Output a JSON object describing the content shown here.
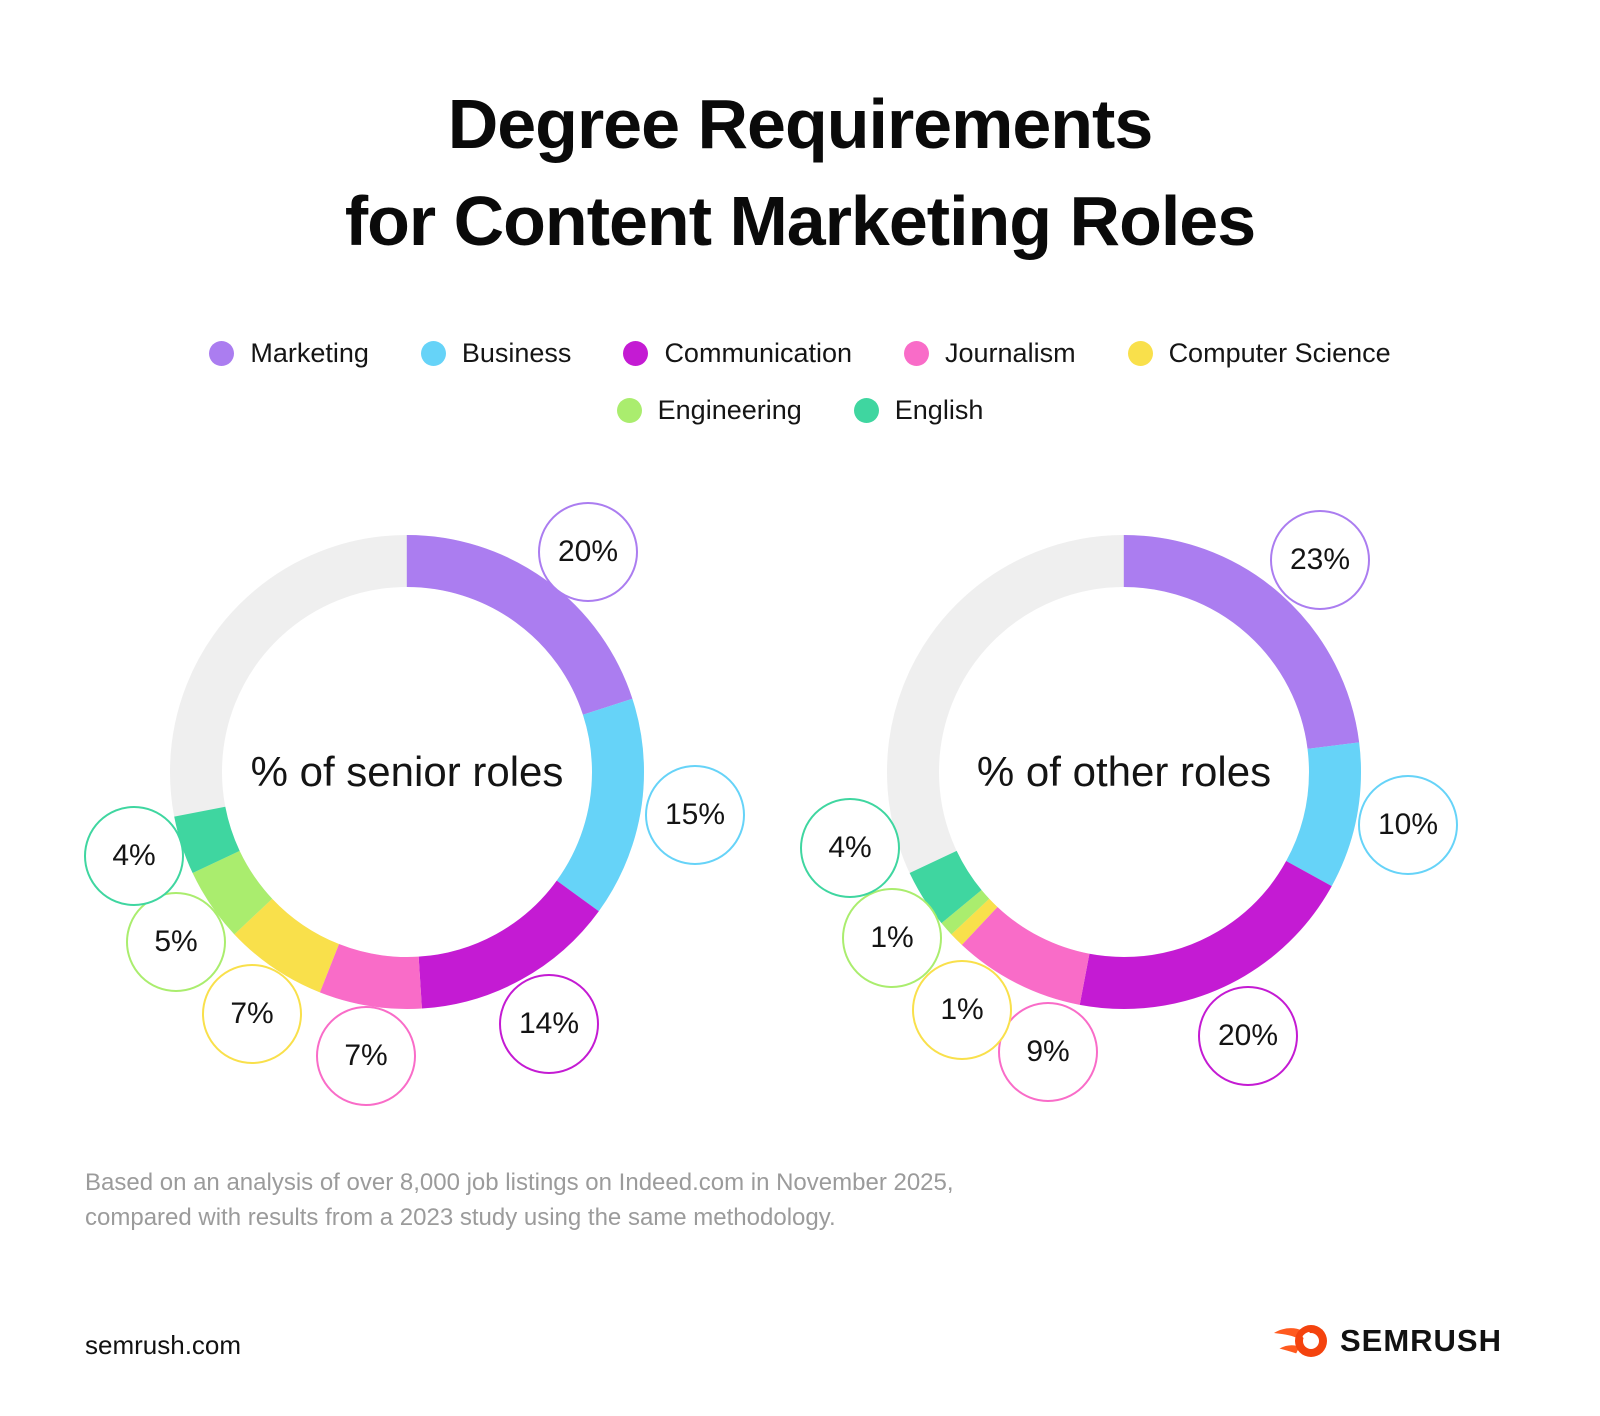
{
  "header": {
    "title_line1": "Degree Requirements",
    "title_line2": "for Content Marketing Roles"
  },
  "legend": [
    {
      "label": "Marketing",
      "color": "#ab7df0"
    },
    {
      "label": "Business",
      "color": "#66d3f8"
    },
    {
      "label": "Communication",
      "color": "#c41bd3"
    },
    {
      "label": "Journalism",
      "color": "#f96cc8"
    },
    {
      "label": "Computer Science",
      "color": "#f9e04b"
    },
    {
      "label": "Engineering",
      "color": "#aaed6e"
    },
    {
      "label": "English",
      "color": "#3fd6a0"
    }
  ],
  "colors": {
    "remainder_gray": "#efefef",
    "background": "#ffffff",
    "brand_circle_orange": "#f4430e",
    "brand_flame_orange": "#ff5a1f"
  },
  "chart_data": [
    {
      "type": "pie",
      "variant": "donut",
      "center_label": "% of senior roles",
      "categories": [
        "Marketing",
        "Business",
        "Communication",
        "Journalism",
        "Computer Science",
        "Engineering",
        "English"
      ],
      "values": [
        20,
        15,
        14,
        7,
        7,
        5,
        4
      ],
      "unit": "%",
      "remainder": 28,
      "start_angle_deg": 0,
      "direction": "clockwise",
      "legend_position": "top"
    },
    {
      "type": "pie",
      "variant": "donut",
      "center_label": "% of other roles",
      "categories": [
        "Marketing",
        "Business",
        "Communication",
        "Journalism",
        "Computer Science",
        "Engineering",
        "English"
      ],
      "values": [
        23,
        10,
        20,
        9,
        1,
        1,
        4
      ],
      "unit": "%",
      "remainder": 32,
      "start_angle_deg": 0,
      "direction": "clockwise",
      "legend_position": "top"
    }
  ],
  "footnote_lines": [
    "Based on an analysis of over 8,000 job listings on Indeed.com in November 2025,",
    "compared with results from a 2023 study using the same methodology."
  ],
  "footer": {
    "site": "semrush.com",
    "brand": "SEMRUSH"
  }
}
